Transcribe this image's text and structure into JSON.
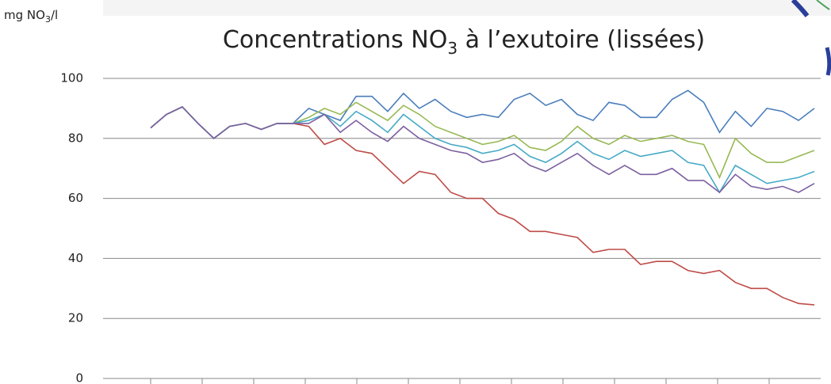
{
  "chart_data": {
    "type": "line",
    "title": [
      "Concentrations NO",
      "3",
      " à l’exutoire (lissées)"
    ],
    "y_label": [
      "mg NO",
      "3",
      "/l"
    ],
    "ylim": [
      0,
      100
    ],
    "yticks": [
      0,
      20,
      40,
      60,
      80,
      100
    ],
    "grid": true,
    "series": [
      {
        "color": "#4a7ebb",
        "values": [
          83.5,
          88,
          90.5,
          85,
          80,
          84,
          85,
          83,
          85,
          85,
          90,
          88,
          86,
          94,
          94,
          89,
          95,
          90,
          93,
          89,
          87,
          88,
          87,
          93,
          95,
          91,
          93,
          88,
          86,
          92,
          91,
          87,
          87,
          93,
          96,
          92,
          82,
          89,
          84,
          90,
          89,
          86,
          90
        ]
      },
      {
        "color": "#be4b48",
        "values": [
          83.5,
          88,
          90.5,
          85,
          80,
          84,
          85,
          83,
          85,
          85,
          84,
          78,
          80,
          76,
          75,
          70,
          65,
          69,
          68,
          62,
          60,
          60,
          55,
          53,
          49,
          49,
          48,
          47,
          42,
          43,
          43,
          38,
          39,
          39,
          36,
          35,
          36,
          32,
          30,
          30,
          27,
          25,
          24.5
        ]
      },
      {
        "color": "#98b954",
        "values": [
          83.5,
          88,
          90.5,
          85,
          80,
          84,
          85,
          83,
          85,
          85,
          87,
          90,
          88,
          92,
          89,
          86,
          91,
          88,
          84,
          82,
          80,
          78,
          79,
          81,
          77,
          76,
          79,
          84,
          80,
          78,
          81,
          79,
          80,
          81,
          79,
          78,
          67,
          80,
          75,
          72,
          72,
          74,
          76
        ]
      },
      {
        "color": "#46aac5",
        "values": [
          83.5,
          88,
          90.5,
          85,
          80,
          84,
          85,
          83,
          85,
          85,
          86,
          88,
          84,
          89,
          86,
          82,
          88,
          84,
          80,
          78,
          77,
          75,
          76,
          78,
          74,
          72,
          75,
          79,
          75,
          73,
          76,
          74,
          75,
          76,
          72,
          71,
          62,
          71,
          68,
          65,
          66,
          67,
          69
        ]
      },
      {
        "color": "#7d60a0",
        "values": [
          83.5,
          88,
          90.5,
          85,
          80,
          84,
          85,
          83,
          85,
          85,
          85,
          88,
          82,
          86,
          82,
          79,
          84,
          80,
          78,
          76,
          75,
          72,
          73,
          75,
          71,
          69,
          72,
          75,
          71,
          68,
          71,
          68,
          68,
          70,
          66,
          66,
          62,
          68,
          64,
          63,
          64,
          62,
          65
        ]
      }
    ]
  }
}
